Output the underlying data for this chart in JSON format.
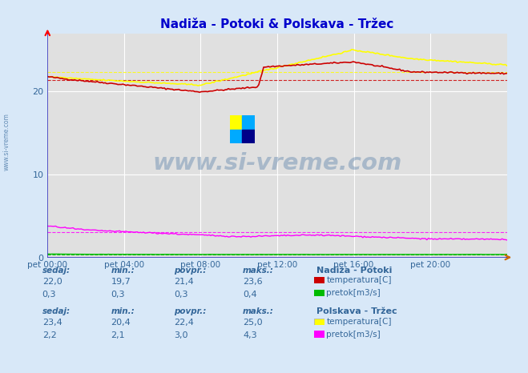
{
  "title": "Nadiža - Potoki & Polskava - Tržec",
  "title_color": "#0000cc",
  "bg_color": "#d8e8f8",
  "plot_bg_color": "#e0e0e0",
  "grid_color": "#ffffff",
  "tick_color": "#336699",
  "x_labels": [
    "pet 00:00",
    "pet 04:00",
    "pet 08:00",
    "pet 12:00",
    "pet 16:00",
    "pet 20:00"
  ],
  "y_ticks": [
    0,
    10,
    20
  ],
  "ylim": [
    0,
    27
  ],
  "n_points": 288,
  "nadiza_temp_min": 19.7,
  "nadiza_temp_max": 23.6,
  "nadiza_temp_avg": 21.4,
  "nadiza_temp_current": 22.0,
  "nadiza_flow_min": 0.3,
  "nadiza_flow_max": 0.4,
  "nadiza_flow_avg": 0.3,
  "nadiza_flow_current": 0.3,
  "polskava_temp_min": 20.4,
  "polskava_temp_max": 25.0,
  "polskava_temp_avg": 22.4,
  "polskava_temp_current": 23.4,
  "polskava_flow_min": 2.1,
  "polskava_flow_max": 4.3,
  "polskava_flow_avg": 3.0,
  "polskava_flow_current": 2.2,
  "nadiza_temp_color": "#cc0000",
  "nadiza_flow_color": "#00bb00",
  "polskava_temp_color": "#ffff00",
  "polskava_flow_color": "#ff00ff",
  "watermark_color": "#336699",
  "watermark_text": "www.si-vreme.com",
  "sidebar_text": "www.si-vreme.com",
  "footer_color": "#336699",
  "logo_colors": [
    "#ffff00",
    "#00aaff",
    "#00aaff",
    "#000088"
  ]
}
